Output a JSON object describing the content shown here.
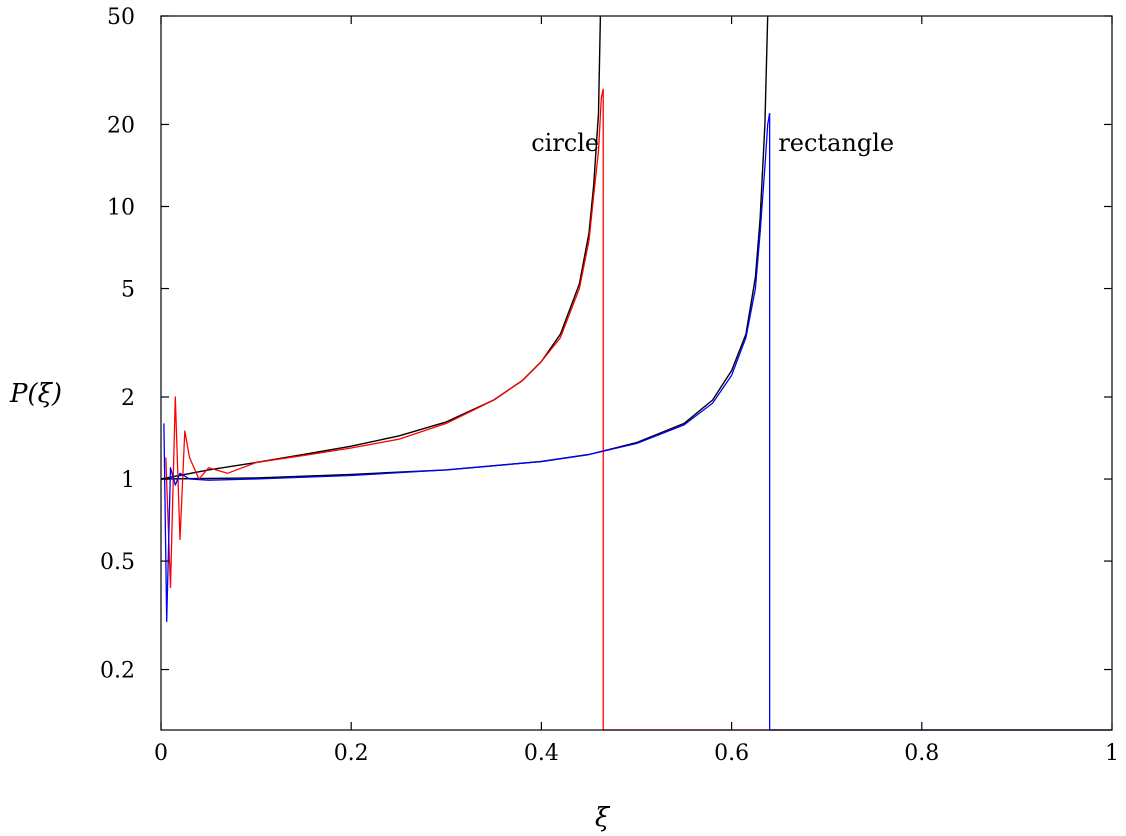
{
  "chart_data": {
    "type": "line",
    "title": "",
    "xlabel": "ξ",
    "ylabel": "P(ξ)",
    "xlim": [
      0,
      1
    ],
    "ylim": [
      0.12,
      50
    ],
    "yscale": "log",
    "x_ticks": [
      0,
      0.2,
      0.4,
      0.6,
      0.8,
      1
    ],
    "x_tick_labels": [
      "0",
      "0.2",
      "0.4",
      "0.6",
      "0.8",
      "1"
    ],
    "y_ticks": [
      0.2,
      0.5,
      1,
      2,
      5,
      10,
      20,
      50
    ],
    "y_tick_labels": [
      "0.2",
      "0.5",
      "1",
      "2",
      "5",
      "10",
      "20",
      "50"
    ],
    "grid": false,
    "annotations": [
      {
        "text": "circle",
        "x": 0.425,
        "y": 16
      },
      {
        "text": "rectangle",
        "x": 0.71,
        "y": 16
      }
    ],
    "series": [
      {
        "kind": "theory",
        "color": "#000000",
        "x": [
          0,
          0.05,
          0.1,
          0.15,
          0.2,
          0.25,
          0.3,
          0.35,
          0.38,
          0.4,
          0.42,
          0.44,
          0.45,
          0.455,
          0.46,
          0.462
        ],
        "y": [
          1.0,
          1.08,
          1.15,
          1.23,
          1.32,
          1.44,
          1.62,
          1.95,
          2.3,
          2.7,
          3.4,
          5.2,
          8.0,
          12.0,
          22.0,
          50.0
        ]
      },
      {
        "kind": "theory",
        "color": "#000000",
        "x": [
          0,
          0.1,
          0.2,
          0.3,
          0.4,
          0.45,
          0.5,
          0.55,
          0.58,
          0.6,
          0.615,
          0.625,
          0.63,
          0.635,
          0.638
        ],
        "y": [
          1.0,
          1.01,
          1.04,
          1.08,
          1.16,
          1.23,
          1.36,
          1.6,
          1.95,
          2.5,
          3.4,
          5.5,
          9.0,
          20.0,
          50.0
        ]
      },
      {
        "kind": "simulation",
        "color": "#ff0000",
        "x": [
          0.005,
          0.01,
          0.015,
          0.02,
          0.025,
          0.03,
          0.04,
          0.05,
          0.07,
          0.1,
          0.15,
          0.2,
          0.25,
          0.3,
          0.35,
          0.38,
          0.4,
          0.42,
          0.44,
          0.45,
          0.455,
          0.46,
          0.463,
          0.465
        ],
        "y": [
          1.2,
          0.4,
          2.0,
          0.6,
          1.5,
          1.2,
          1.0,
          1.1,
          1.05,
          1.15,
          1.22,
          1.3,
          1.4,
          1.6,
          1.95,
          2.3,
          2.7,
          3.3,
          5.0,
          7.5,
          11.0,
          16.0,
          25.0,
          27.0
        ]
      },
      {
        "kind": "simulation",
        "color": "#0000ff",
        "x": [
          0.003,
          0.006,
          0.01,
          0.015,
          0.02,
          0.03,
          0.05,
          0.1,
          0.2,
          0.3,
          0.4,
          0.45,
          0.5,
          0.55,
          0.58,
          0.6,
          0.615,
          0.625,
          0.63,
          0.635,
          0.638,
          0.64
        ],
        "y": [
          1.6,
          0.3,
          1.1,
          0.95,
          1.05,
          1.0,
          0.99,
          1.0,
          1.03,
          1.08,
          1.16,
          1.23,
          1.35,
          1.58,
          1.9,
          2.4,
          3.3,
          5.0,
          8.0,
          14.0,
          20.0,
          22.0
        ]
      }
    ]
  }
}
